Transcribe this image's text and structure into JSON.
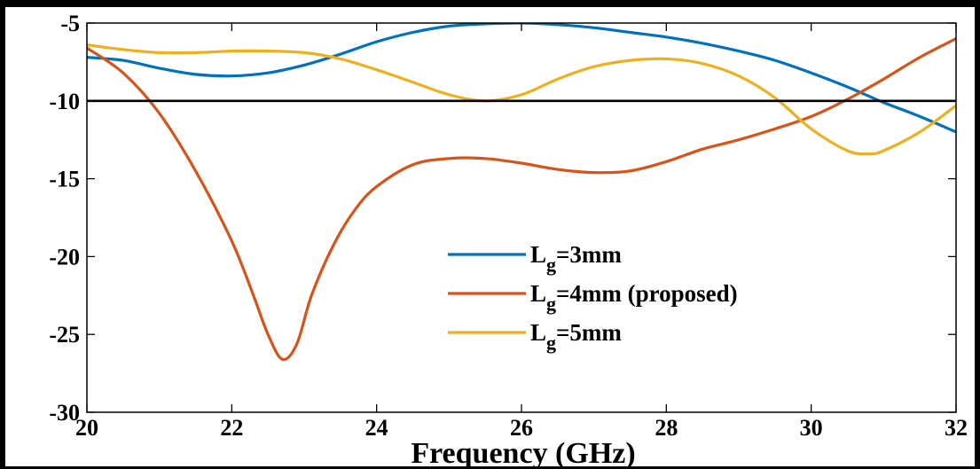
{
  "chart_data": {
    "type": "line",
    "title": "",
    "xlabel": "Frequency (GHz)",
    "ylabel": "",
    "xlim": [
      20,
      32
    ],
    "ylim": [
      -30,
      -5
    ],
    "xticks": [
      20,
      22,
      24,
      26,
      28,
      30,
      32
    ],
    "yticks": [
      -5,
      -10,
      -15,
      -20,
      -25,
      -30
    ],
    "grid": false,
    "legend_position": "center-right",
    "reference_line": {
      "y": -10,
      "color": "#000000"
    },
    "series": [
      {
        "name": "Lg=3mm",
        "legend_main": "L",
        "legend_sub": "g",
        "legend_rest": "=3mm",
        "color": "#0072BD",
        "x": [
          20,
          20.5,
          21,
          21.5,
          22,
          22.5,
          23,
          23.5,
          24,
          24.5,
          25,
          25.5,
          26,
          26.5,
          27,
          27.5,
          28,
          28.5,
          29,
          29.5,
          30,
          30.5,
          31,
          31.5,
          32
        ],
        "y": [
          -7.2,
          -7.4,
          -7.9,
          -8.3,
          -8.4,
          -8.2,
          -7.7,
          -7.0,
          -6.2,
          -5.6,
          -5.2,
          -5.05,
          -5.0,
          -5.1,
          -5.3,
          -5.6,
          -5.9,
          -6.3,
          -6.8,
          -7.4,
          -8.2,
          -9.1,
          -10.1,
          -11.0,
          -12.0
        ]
      },
      {
        "name": "Lg=4mm (proposed)",
        "legend_main": "L",
        "legend_sub": "g",
        "legend_rest": "=4mm (proposed)",
        "color": "#D95319",
        "x": [
          20,
          20.5,
          21,
          21.5,
          22,
          22.3,
          22.5,
          22.7,
          22.9,
          23.1,
          23.4,
          23.7,
          24,
          24.5,
          25,
          25.5,
          26,
          26.5,
          27,
          27.5,
          28,
          28.5,
          29,
          29.5,
          30,
          30.5,
          31,
          31.5,
          32
        ],
        "y": [
          -6.6,
          -8.2,
          -10.8,
          -14.5,
          -19.0,
          -22.5,
          -25.0,
          -26.6,
          -25.6,
          -22.5,
          -19.3,
          -17.0,
          -15.5,
          -14.1,
          -13.7,
          -13.7,
          -14.0,
          -14.4,
          -14.6,
          -14.5,
          -13.9,
          -13.1,
          -12.5,
          -11.8,
          -11.0,
          -9.9,
          -8.6,
          -7.2,
          -6.0
        ]
      },
      {
        "name": "Lg=5mm",
        "legend_main": "L",
        "legend_sub": "g",
        "legend_rest": "=5mm",
        "color": "#EDB120",
        "x": [
          20,
          20.5,
          21,
          21.5,
          22,
          22.5,
          23,
          23.5,
          24,
          24.5,
          25,
          25.5,
          26,
          26.5,
          27,
          27.5,
          28,
          28.5,
          29,
          29.5,
          30,
          30.5,
          30.8,
          31,
          31.5,
          32
        ],
        "y": [
          -6.4,
          -6.7,
          -6.9,
          -6.9,
          -6.8,
          -6.8,
          -6.9,
          -7.3,
          -8.0,
          -8.8,
          -9.6,
          -10.0,
          -9.6,
          -8.6,
          -7.8,
          -7.4,
          -7.3,
          -7.6,
          -8.4,
          -9.8,
          -11.8,
          -13.2,
          -13.4,
          -13.2,
          -12.0,
          -10.3
        ]
      }
    ]
  }
}
